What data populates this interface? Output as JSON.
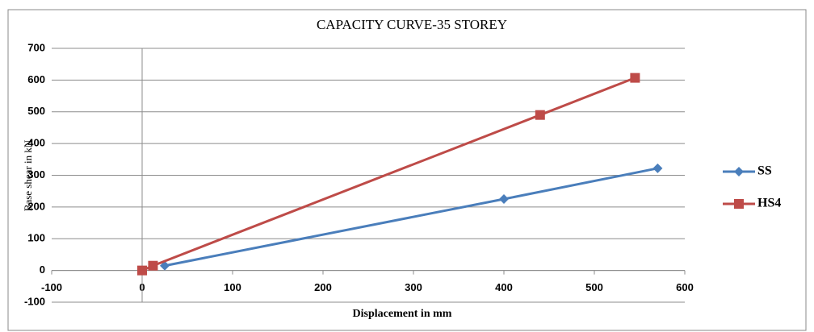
{
  "chart_data": {
    "type": "line",
    "title": "CAPACITY CURVE-35 STOREY",
    "xlabel": "Displacement in mm",
    "ylabel": "Base shear in kN",
    "xlim": [
      -100,
      600
    ],
    "xticks": [
      -100,
      0,
      100,
      200,
      300,
      400,
      500,
      600
    ],
    "ylim": [
      -100,
      700
    ],
    "yticks": [
      -100,
      0,
      100,
      200,
      300,
      400,
      500,
      600,
      700
    ],
    "grid": true,
    "legend": "right",
    "series": [
      {
        "name": "SS",
        "color": "#4a7ebb",
        "marker": "diamond",
        "x": [
          25,
          400,
          570
        ],
        "values": [
          15,
          225,
          322
        ]
      },
      {
        "name": "HS4",
        "color": "#be4b48",
        "marker": "square",
        "x": [
          0,
          12,
          440,
          545
        ],
        "values": [
          0,
          15,
          490,
          607
        ]
      }
    ]
  }
}
